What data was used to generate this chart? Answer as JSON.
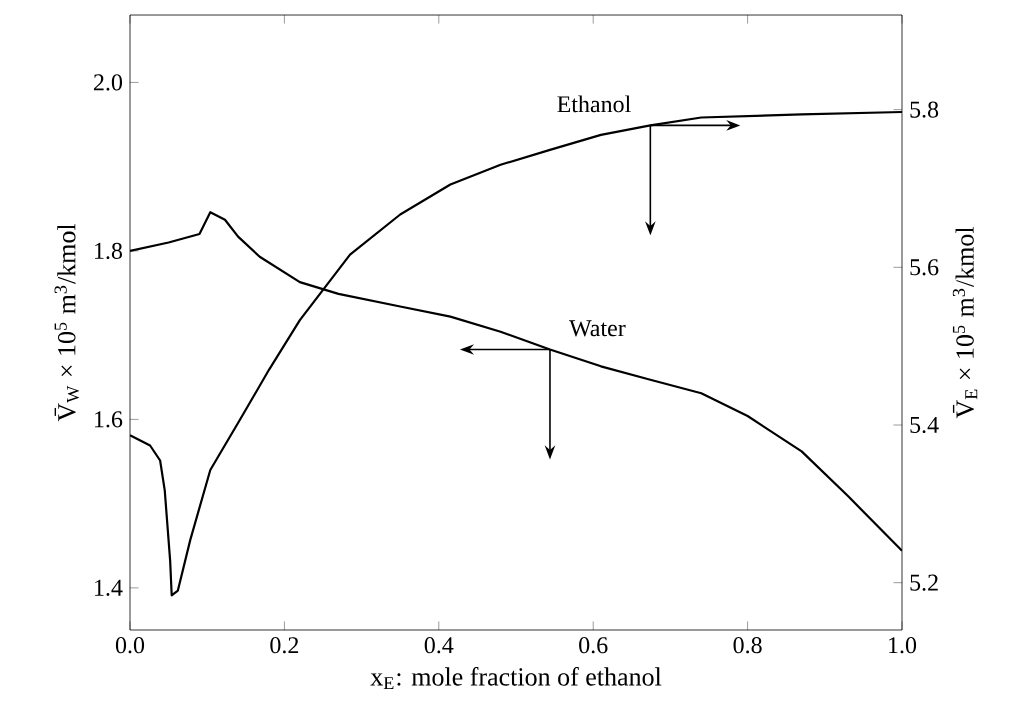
{
  "chart_data": {
    "type": "line",
    "xlabel": "x$_{E}$: mole fraction of ethanol",
    "ylabel": "V̄$_{W}$ × 10$^{5}$ m$^{3}$/kmol",
    "y2label": "V̄$_{E}$ × 10$^{5}$ m$^{3}$/kmol",
    "xlim": [
      0,
      1
    ],
    "ylim": [
      1.35,
      2.08
    ],
    "y2lim": [
      5.14,
      5.92
    ],
    "xticks": [
      {
        "value": 0,
        "label": "0.0"
      },
      0.2,
      0.4,
      0.6,
      0.8,
      {
        "value": 1,
        "label": "1.0"
      }
    ],
    "yticks": [
      1.4,
      1.6,
      1.8,
      {
        "value": 2,
        "label": "2.0"
      }
    ],
    "y2ticks": [
      5.2,
      5.4,
      5.6,
      5.8
    ],
    "series": [
      {
        "color": "#000000",
        "x": [
          0,
          0.05,
          0.09,
          0.104,
          0.123,
          0.14,
          0.168,
          0.22,
          0.27,
          0.35,
          0.415,
          0.48,
          0.544,
          0.61,
          0.674,
          0.74,
          0.8,
          0.87,
          0.93,
          1.0
        ],
        "values": [
          1.8,
          1.81,
          1.82,
          1.846,
          1.837,
          1.817,
          1.793,
          1.763,
          1.749,
          1.734,
          1.722,
          1.704,
          1.683,
          1.663,
          1.647,
          1.631,
          1.604,
          1.562,
          1.509,
          1.444
        ]
      },
      {
        "color": "#000000",
        "axis": "y2",
        "x": [
          0,
          0.026,
          0.039,
          0.045,
          0.052,
          0.054,
          0.062,
          0.078,
          0.104,
          0.142,
          0.18,
          0.22,
          0.285,
          0.35,
          0.415,
          0.48,
          0.544,
          0.61,
          0.674,
          0.74,
          0.87,
          1.0
        ],
        "values": [
          5.387,
          5.374,
          5.355,
          5.317,
          5.228,
          5.184,
          5.19,
          5.254,
          5.343,
          5.406,
          5.47,
          5.533,
          5.616,
          5.667,
          5.705,
          5.73,
          5.749,
          5.768,
          5.78,
          5.79,
          5.794,
          5.797
        ]
      }
    ],
    "annotations": [
      {
        "text": "Water",
        "x": 0.544,
        "y": 1.683
      },
      "Ethanol"
    ]
  }
}
